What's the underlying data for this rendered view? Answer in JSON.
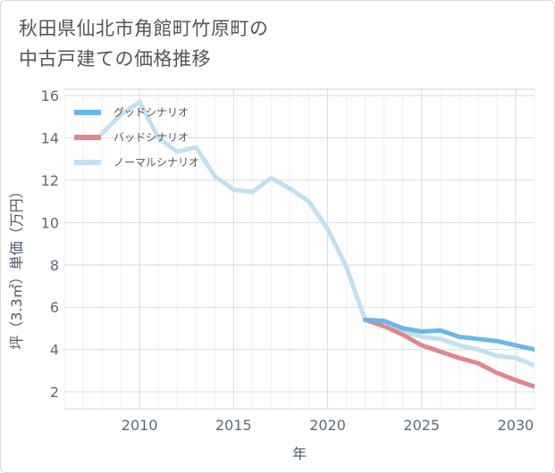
{
  "title": {
    "line1": "秋田県仙北市角館町竹原町の",
    "line2": "中古戸建ての価格推移"
  },
  "chart_data": {
    "type": "line",
    "xlabel": "年",
    "ylabel": "坪（3.3㎡）単価（万円）",
    "xlim": [
      2006,
      2031
    ],
    "ylim": [
      1.2,
      16.3
    ],
    "xticks": [
      2010,
      2015,
      2020,
      2025,
      2030
    ],
    "yticks": [
      2,
      4,
      6,
      8,
      10,
      12,
      14,
      16
    ],
    "grid": true,
    "legend_position": "top-left",
    "series": [
      {
        "name": "グッドシナリオ",
        "color": "#6bb6ea",
        "x": [
          2022,
          2023,
          2024,
          2025,
          2026,
          2027,
          2028,
          2029,
          2030,
          2031
        ],
        "y": [
          5.4,
          5.35,
          5.0,
          4.85,
          4.9,
          4.6,
          4.5,
          4.4,
          4.2,
          4.0
        ]
      },
      {
        "name": "バッドシナリオ",
        "color": "#e0868f",
        "x": [
          2022,
          2023,
          2024,
          2025,
          2026,
          2027,
          2028,
          2029,
          2030,
          2031
        ],
        "y": [
          5.4,
          5.1,
          4.7,
          4.2,
          3.9,
          3.6,
          3.35,
          2.9,
          2.55,
          2.25
        ]
      },
      {
        "name": "ノーマルシナリオ",
        "color": "#c2e0f0",
        "x": [
          2008,
          2009,
          2010,
          2011,
          2012,
          2013,
          2014,
          2015,
          2016,
          2017,
          2018,
          2019,
          2020,
          2021,
          2022,
          2023,
          2024,
          2025,
          2026,
          2027,
          2028,
          2029,
          2030,
          2031
        ],
        "y": [
          14.2,
          15.1,
          15.7,
          14.0,
          13.35,
          13.55,
          12.2,
          11.55,
          11.45,
          12.1,
          11.6,
          11.0,
          9.7,
          7.9,
          5.4,
          5.1,
          4.85,
          4.6,
          4.5,
          4.2,
          4.0,
          3.7,
          3.6,
          3.25
        ]
      }
    ]
  }
}
